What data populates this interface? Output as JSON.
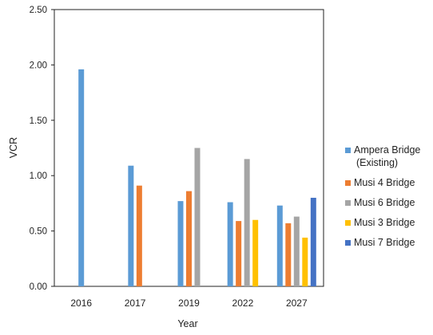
{
  "chart_data": {
    "type": "bar",
    "xlabel": "Year",
    "ylabel": "VCR",
    "categories": [
      "2016",
      "2017",
      "2019",
      "2022",
      "2027"
    ],
    "ylim": [
      0,
      2.5
    ],
    "yticks": [
      "0.00",
      "0.50",
      "1.00",
      "1.50",
      "2.00",
      "2.50"
    ],
    "grid": false,
    "legend_position": "right",
    "series": [
      {
        "name": "Ampera Bridge (Existing)",
        "legend_lines": [
          "Ampera Bridge",
          "(Existing)"
        ],
        "color": "#5b9bd5",
        "values": [
          1.96,
          1.09,
          0.77,
          0.76,
          0.73
        ]
      },
      {
        "name": "Musi 4 Bridge",
        "legend_lines": [
          "Musi 4 Bridge"
        ],
        "color": "#ed7d31",
        "values": [
          null,
          0.91,
          0.86,
          0.59,
          0.57
        ]
      },
      {
        "name": "Musi 6 Bridge",
        "legend_lines": [
          "Musi 6 Bridge"
        ],
        "color": "#a5a5a5",
        "values": [
          null,
          null,
          1.25,
          1.15,
          0.63
        ]
      },
      {
        "name": "Musi 3 Bridge",
        "legend_lines": [
          "Musi 3 Bridge"
        ],
        "color": "#ffc000",
        "values": [
          null,
          null,
          null,
          0.6,
          0.44
        ]
      },
      {
        "name": "Musi 7 Bridge",
        "legend_lines": [
          "Musi 7 Bridge"
        ],
        "color": "#4472c4",
        "values": [
          null,
          null,
          null,
          null,
          0.8
        ]
      }
    ]
  }
}
